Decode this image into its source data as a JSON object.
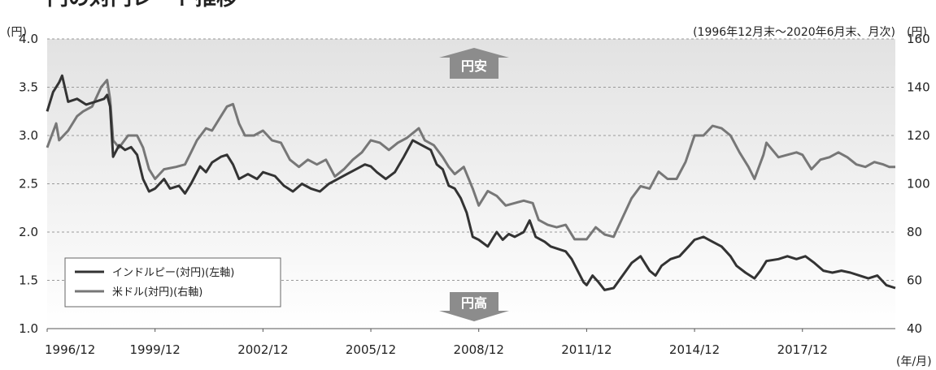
{
  "title": "円の対円レート推移",
  "period_note": "(1996年12月末～2020年6月末、月次)",
  "colors": {
    "plot_top": "#e2e2e2",
    "plot_bottom": "#ffffff",
    "inr": "#333333",
    "usd": "#777777",
    "arrow": "#8c8c8c",
    "grid": "#9a9a9a"
  },
  "annotations": {
    "up": "円安",
    "down": "円高"
  },
  "chart_data": {
    "type": "line",
    "left_axis": {
      "unit": "(円)",
      "min": 1.0,
      "max": 4.0,
      "ticks": [
        "1.0",
        "1.5",
        "2.0",
        "2.5",
        "3.0",
        "3.5",
        "4.0"
      ],
      "tick_values": [
        1.0,
        1.5,
        2.0,
        2.5,
        3.0,
        3.5,
        4.0
      ]
    },
    "right_axis": {
      "unit": "(円)",
      "min": 40,
      "max": 160,
      "ticks": [
        "40",
        "60",
        "80",
        "100",
        "120",
        "140",
        "160"
      ],
      "tick_values": [
        40,
        60,
        80,
        100,
        120,
        140,
        160
      ]
    },
    "x_axis": {
      "unit": "(年/月)",
      "start": 1996.917,
      "end": 2020.5,
      "tick_labels": [
        "1996/12",
        "1999/12",
        "2002/12",
        "2005/12",
        "2008/12",
        "2011/12",
        "2014/12",
        "2017/12"
      ],
      "tick_values": [
        1996.917,
        1999.917,
        2002.917,
        2005.917,
        2008.917,
        2011.917,
        2014.917,
        2017.917
      ]
    },
    "grid": true,
    "legend_position": "bottom-left",
    "series": [
      {
        "name": "インドルピー(対円)(左軸)",
        "axis": "left",
        "points": [
          [
            1996.917,
            3.25
          ],
          [
            1997.083,
            3.45
          ],
          [
            1997.25,
            3.55
          ],
          [
            1997.333,
            3.62
          ],
          [
            1997.5,
            3.35
          ],
          [
            1997.75,
            3.38
          ],
          [
            1998.0,
            3.32
          ],
          [
            1998.25,
            3.35
          ],
          [
            1998.5,
            3.38
          ],
          [
            1998.583,
            3.42
          ],
          [
            1998.667,
            3.3
          ],
          [
            1998.75,
            2.78
          ],
          [
            1998.917,
            2.9
          ],
          [
            1999.083,
            2.85
          ],
          [
            1999.25,
            2.88
          ],
          [
            1999.417,
            2.8
          ],
          [
            1999.583,
            2.55
          ],
          [
            1999.75,
            2.42
          ],
          [
            1999.917,
            2.45
          ],
          [
            2000.167,
            2.55
          ],
          [
            2000.333,
            2.45
          ],
          [
            2000.583,
            2.48
          ],
          [
            2000.75,
            2.4
          ],
          [
            2000.917,
            2.5
          ],
          [
            2001.167,
            2.68
          ],
          [
            2001.333,
            2.62
          ],
          [
            2001.5,
            2.72
          ],
          [
            2001.75,
            2.78
          ],
          [
            2001.917,
            2.8
          ],
          [
            2002.083,
            2.7
          ],
          [
            2002.25,
            2.55
          ],
          [
            2002.5,
            2.6
          ],
          [
            2002.75,
            2.55
          ],
          [
            2002.917,
            2.62
          ],
          [
            2003.25,
            2.58
          ],
          [
            2003.5,
            2.48
          ],
          [
            2003.75,
            2.42
          ],
          [
            2004.0,
            2.5
          ],
          [
            2004.25,
            2.45
          ],
          [
            2004.5,
            2.42
          ],
          [
            2004.75,
            2.5
          ],
          [
            2005.0,
            2.55
          ],
          [
            2005.25,
            2.6
          ],
          [
            2005.5,
            2.65
          ],
          [
            2005.75,
            2.7
          ],
          [
            2005.917,
            2.68
          ],
          [
            2006.083,
            2.62
          ],
          [
            2006.333,
            2.55
          ],
          [
            2006.583,
            2.62
          ],
          [
            2006.833,
            2.78
          ],
          [
            2007.083,
            2.95
          ],
          [
            2007.333,
            2.9
          ],
          [
            2007.583,
            2.85
          ],
          [
            2007.75,
            2.7
          ],
          [
            2007.917,
            2.65
          ],
          [
            2008.083,
            2.48
          ],
          [
            2008.25,
            2.45
          ],
          [
            2008.417,
            2.35
          ],
          [
            2008.583,
            2.2
          ],
          [
            2008.75,
            1.95
          ],
          [
            2008.917,
            1.92
          ],
          [
            2009.167,
            1.85
          ],
          [
            2009.417,
            2.0
          ],
          [
            2009.583,
            1.92
          ],
          [
            2009.75,
            1.98
          ],
          [
            2009.917,
            1.95
          ],
          [
            2010.167,
            2.0
          ],
          [
            2010.333,
            2.12
          ],
          [
            2010.5,
            1.95
          ],
          [
            2010.75,
            1.9
          ],
          [
            2010.917,
            1.85
          ],
          [
            2011.167,
            1.82
          ],
          [
            2011.333,
            1.8
          ],
          [
            2011.5,
            1.72
          ],
          [
            2011.667,
            1.6
          ],
          [
            2011.833,
            1.48
          ],
          [
            2011.917,
            1.45
          ],
          [
            2012.083,
            1.55
          ],
          [
            2012.25,
            1.48
          ],
          [
            2012.417,
            1.4
          ],
          [
            2012.667,
            1.42
          ],
          [
            2012.917,
            1.55
          ],
          [
            2013.167,
            1.68
          ],
          [
            2013.417,
            1.75
          ],
          [
            2013.667,
            1.6
          ],
          [
            2013.833,
            1.55
          ],
          [
            2014.0,
            1.65
          ],
          [
            2014.25,
            1.72
          ],
          [
            2014.5,
            1.75
          ],
          [
            2014.75,
            1.85
          ],
          [
            2014.917,
            1.92
          ],
          [
            2015.167,
            1.95
          ],
          [
            2015.417,
            1.9
          ],
          [
            2015.667,
            1.85
          ],
          [
            2015.917,
            1.75
          ],
          [
            2016.083,
            1.65
          ],
          [
            2016.333,
            1.58
          ],
          [
            2016.583,
            1.52
          ],
          [
            2016.75,
            1.6
          ],
          [
            2016.917,
            1.7
          ],
          [
            2017.25,
            1.72
          ],
          [
            2017.5,
            1.75
          ],
          [
            2017.75,
            1.72
          ],
          [
            2018.0,
            1.75
          ],
          [
            2018.25,
            1.68
          ],
          [
            2018.5,
            1.6
          ],
          [
            2018.75,
            1.58
          ],
          [
            2019.0,
            1.6
          ],
          [
            2019.25,
            1.58
          ],
          [
            2019.5,
            1.55
          ],
          [
            2019.75,
            1.52
          ],
          [
            2020.0,
            1.55
          ],
          [
            2020.25,
            1.45
          ],
          [
            2020.5,
            1.42
          ]
        ]
      },
      {
        "name": "米ドル(対円)(右軸)",
        "axis": "right",
        "points": [
          [
            1996.917,
            115
          ],
          [
            1997.167,
            125
          ],
          [
            1997.25,
            118
          ],
          [
            1997.5,
            122
          ],
          [
            1997.75,
            128
          ],
          [
            1997.917,
            130
          ],
          [
            1998.167,
            132
          ],
          [
            1998.417,
            140
          ],
          [
            1998.583,
            143
          ],
          [
            1998.667,
            135
          ],
          [
            1998.75,
            118
          ],
          [
            1998.917,
            115
          ],
          [
            1999.167,
            120
          ],
          [
            1999.417,
            120
          ],
          [
            1999.583,
            115
          ],
          [
            1999.75,
            106
          ],
          [
            1999.917,
            102
          ],
          [
            2000.167,
            106
          ],
          [
            2000.5,
            107
          ],
          [
            2000.75,
            108
          ],
          [
            2000.917,
            113
          ],
          [
            2001.083,
            118
          ],
          [
            2001.333,
            123
          ],
          [
            2001.5,
            122
          ],
          [
            2001.75,
            128
          ],
          [
            2001.917,
            132
          ],
          [
            2002.083,
            133
          ],
          [
            2002.25,
            125
          ],
          [
            2002.417,
            120
          ],
          [
            2002.667,
            120
          ],
          [
            2002.917,
            122
          ],
          [
            2003.167,
            118
          ],
          [
            2003.417,
            117
          ],
          [
            2003.667,
            110
          ],
          [
            2003.917,
            107
          ],
          [
            2004.167,
            110
          ],
          [
            2004.417,
            108
          ],
          [
            2004.667,
            110
          ],
          [
            2004.917,
            103
          ],
          [
            2005.167,
            106
          ],
          [
            2005.417,
            110
          ],
          [
            2005.667,
            113
          ],
          [
            2005.917,
            118
          ],
          [
            2006.167,
            117
          ],
          [
            2006.417,
            114
          ],
          [
            2006.667,
            117
          ],
          [
            2006.917,
            119
          ],
          [
            2007.25,
            123
          ],
          [
            2007.417,
            118
          ],
          [
            2007.667,
            116
          ],
          [
            2007.917,
            111
          ],
          [
            2008.083,
            107
          ],
          [
            2008.25,
            104
          ],
          [
            2008.5,
            107
          ],
          [
            2008.75,
            98
          ],
          [
            2008.917,
            91
          ],
          [
            2009.167,
            97
          ],
          [
            2009.417,
            95
          ],
          [
            2009.667,
            91
          ],
          [
            2009.917,
            92
          ],
          [
            2010.167,
            93
          ],
          [
            2010.417,
            92
          ],
          [
            2010.583,
            85
          ],
          [
            2010.833,
            83
          ],
          [
            2011.083,
            82
          ],
          [
            2011.333,
            83
          ],
          [
            2011.583,
            77
          ],
          [
            2011.917,
            77
          ],
          [
            2012.167,
            82
          ],
          [
            2012.417,
            79
          ],
          [
            2012.667,
            78
          ],
          [
            2012.917,
            86
          ],
          [
            2013.167,
            94
          ],
          [
            2013.417,
            99
          ],
          [
            2013.667,
            98
          ],
          [
            2013.917,
            105
          ],
          [
            2014.167,
            102
          ],
          [
            2014.417,
            102
          ],
          [
            2014.667,
            109
          ],
          [
            2014.917,
            120
          ],
          [
            2015.167,
            120
          ],
          [
            2015.417,
            124
          ],
          [
            2015.667,
            123
          ],
          [
            2015.917,
            120
          ],
          [
            2016.167,
            113
          ],
          [
            2016.417,
            107
          ],
          [
            2016.583,
            102
          ],
          [
            2016.833,
            112
          ],
          [
            2016.917,
            117
          ],
          [
            2017.25,
            111
          ],
          [
            2017.5,
            112
          ],
          [
            2017.75,
            113
          ],
          [
            2017.917,
            112
          ],
          [
            2018.167,
            106
          ],
          [
            2018.417,
            110
          ],
          [
            2018.667,
            111
          ],
          [
            2018.917,
            113
          ],
          [
            2019.167,
            111
          ],
          [
            2019.417,
            108
          ],
          [
            2019.667,
            107
          ],
          [
            2019.917,
            109
          ],
          [
            2020.167,
            108
          ],
          [
            2020.333,
            107
          ],
          [
            2020.5,
            107
          ]
        ]
      }
    ]
  }
}
